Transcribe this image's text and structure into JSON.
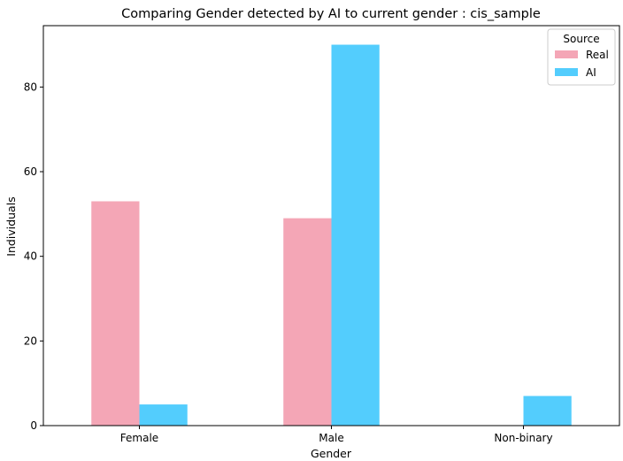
{
  "chart_data": {
    "type": "bar",
    "title": "Comparing Gender detected by AI to current gender : cis_sample",
    "xlabel": "Gender",
    "ylabel": "Individuals",
    "categories": [
      "Female",
      "Male",
      "Non-binary"
    ],
    "series": [
      {
        "name": "Real",
        "values": [
          53,
          49,
          0
        ],
        "color": "#f4a6b6"
      },
      {
        "name": "AI",
        "values": [
          5,
          90,
          7
        ],
        "color": "#53cdfd"
      }
    ],
    "ylim": [
      0,
      94.5
    ],
    "yticks": [
      0,
      20,
      40,
      60,
      80
    ],
    "legend": {
      "title": "Source",
      "placement": "top-right"
    },
    "grid": false
  }
}
